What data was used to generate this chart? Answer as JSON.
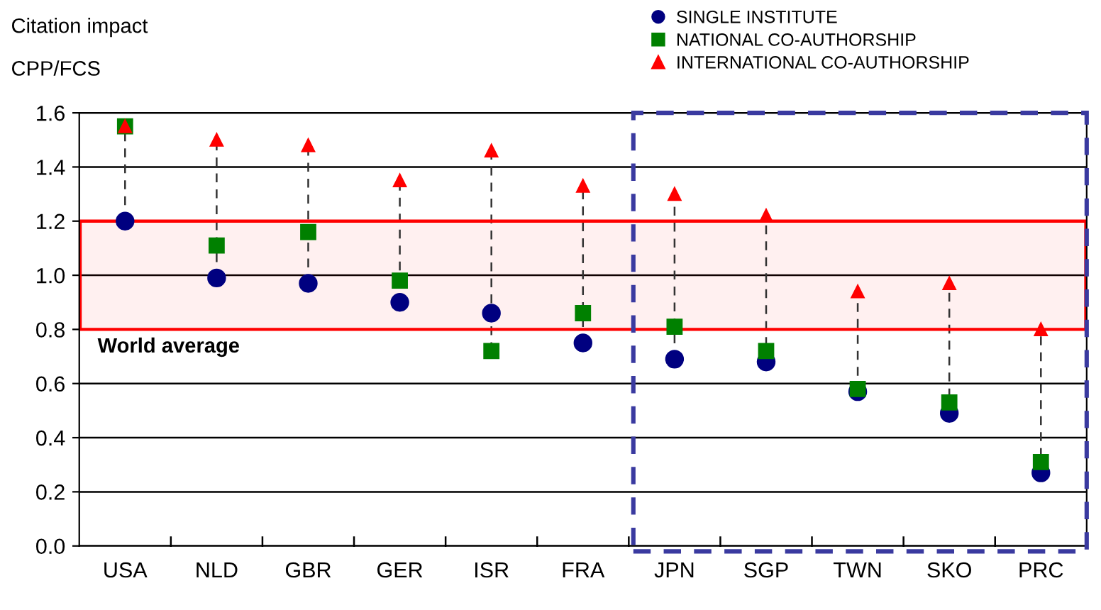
{
  "chart_data": {
    "type": "scatter",
    "title": "Citation impact",
    "ylabel": "CPP/FCS",
    "categories": [
      "USA",
      "NLD",
      "GBR",
      "GER",
      "ISR",
      "FRA",
      "JPN",
      "SGP",
      "TWN",
      "SKO",
      "PRC"
    ],
    "series": [
      {
        "name": "SINGLE INSTITUTE",
        "color": "#000080",
        "marker": "circle",
        "values": [
          1.2,
          0.99,
          0.97,
          0.9,
          0.86,
          0.75,
          0.69,
          0.68,
          0.57,
          0.49,
          0.27
        ]
      },
      {
        "name": "NATIONAL CO-AUTHORSHIP",
        "color": "#008000",
        "marker": "square",
        "values": [
          1.55,
          1.11,
          1.16,
          0.98,
          0.72,
          0.86,
          0.81,
          0.72,
          0.58,
          0.53,
          0.31
        ]
      },
      {
        "name": "INTERNATIONAL CO-AUTHORSHIP",
        "color": "#ff0000",
        "marker": "triangle",
        "values": [
          1.55,
          1.5,
          1.48,
          1.35,
          1.46,
          1.33,
          1.3,
          1.22,
          0.94,
          0.97,
          0.8
        ]
      }
    ],
    "ylim": [
      0,
      1.6
    ],
    "yticks": [
      {
        "value": 0,
        "label": "0.0"
      },
      {
        "value": 0.2,
        "label": "0.2"
      },
      {
        "value": 0.4,
        "label": "0.4"
      },
      {
        "value": 0.6,
        "label": "0.6"
      },
      {
        "value": 0.8,
        "label": "0.8"
      },
      {
        "value": 1.0,
        "label": "1.0"
      },
      {
        "value": 1.2,
        "label": "1.2"
      },
      {
        "value": 1.4,
        "label": "1.4"
      },
      {
        "value": 1.6,
        "label": "1.6"
      }
    ],
    "bands": [
      {
        "axis": "y",
        "from": 0.8,
        "to": 1.2,
        "label": "World average",
        "color": "#ff0000"
      }
    ],
    "grid": "y",
    "legend": "top right"
  }
}
